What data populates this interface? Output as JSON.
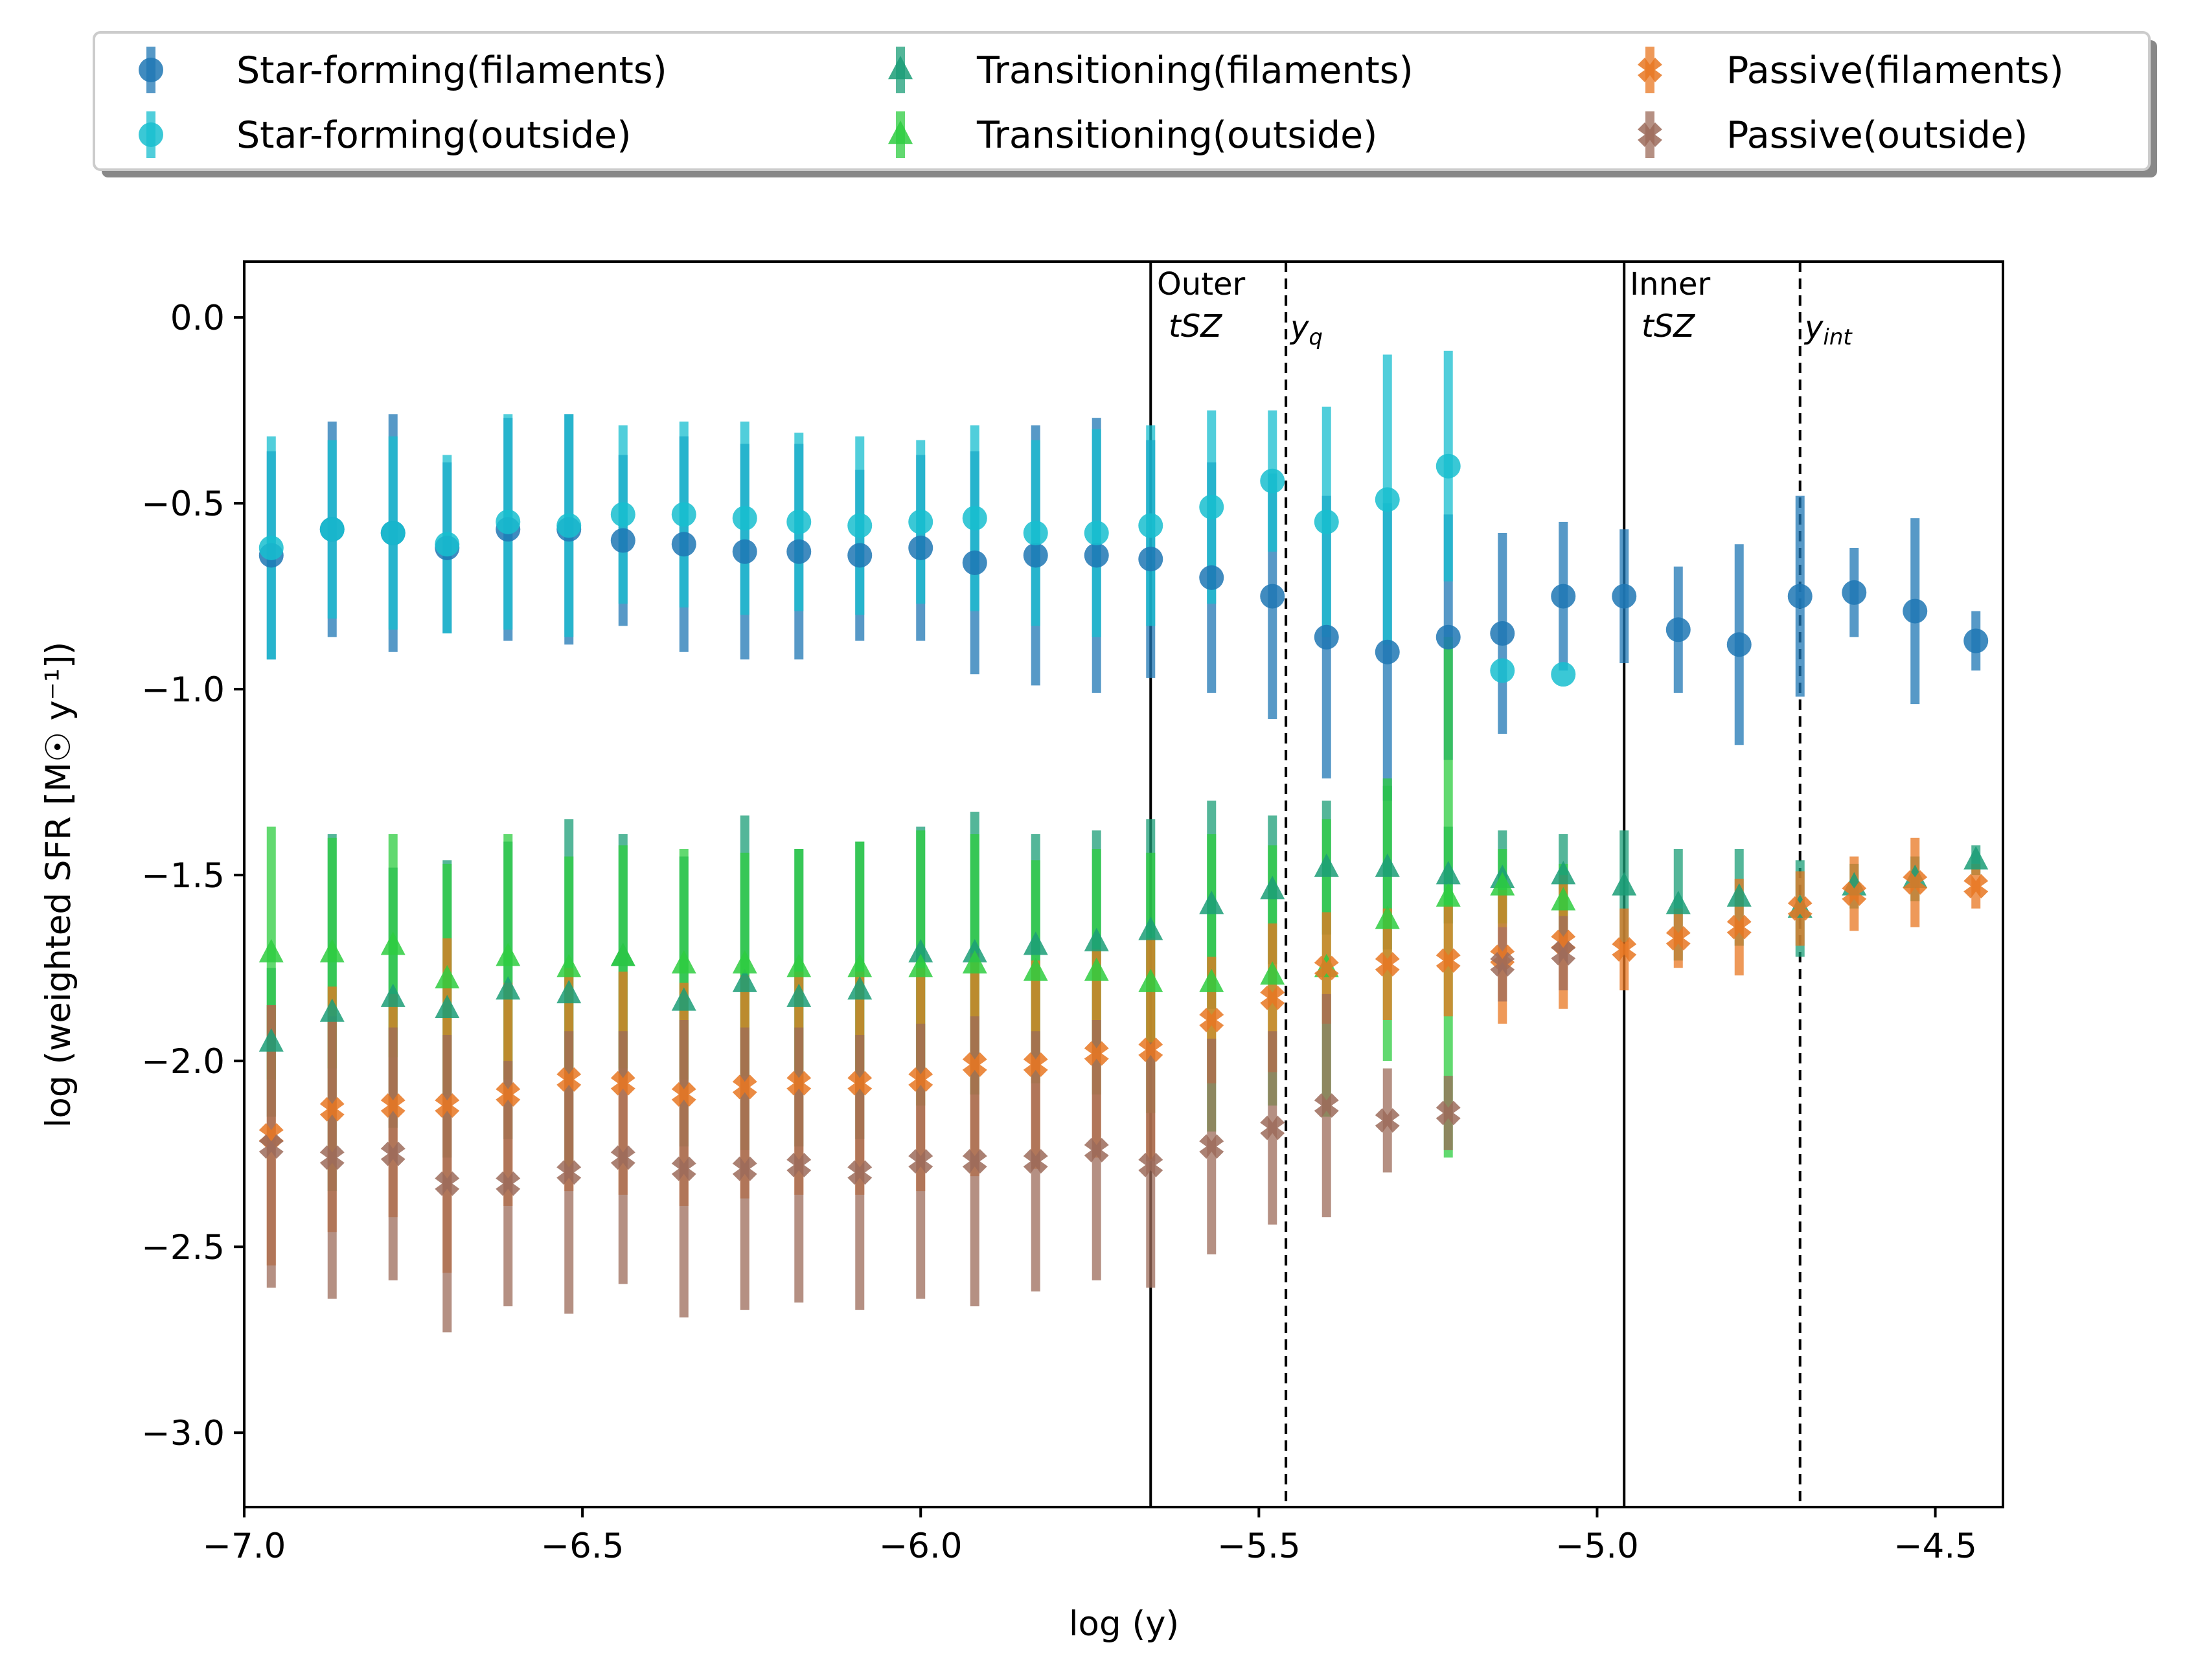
{
  "chart_data": {
    "type": "scatter",
    "title": "",
    "xlabel": "log (y)",
    "ylabel": "log (weighted SFR [M☉ y⁻¹])",
    "xlim": [
      -7.0,
      -4.4
    ],
    "ylim": [
      -3.2,
      0.15
    ],
    "xticks": [
      -7.0,
      -6.5,
      -6.0,
      -5.5,
      -5.0,
      -4.5
    ],
    "xtick_labels": [
      "−7.0",
      "−6.5",
      "−6.0",
      "−5.5",
      "−5.0",
      "−4.5"
    ],
    "yticks": [
      0.0,
      -0.5,
      -1.0,
      -1.5,
      -2.0,
      -2.5,
      -3.0
    ],
    "ytick_labels": [
      "0.0",
      "−0.5",
      "−1.0",
      "−1.5",
      "−2.0",
      "−2.5",
      "−3.0"
    ],
    "grid": false,
    "legend_position": "top (outside, 3 columns)",
    "vlines": [
      {
        "x": -5.66,
        "style": "solid",
        "label_line1": "Outer",
        "label_line2": "tSZ"
      },
      {
        "x": -5.46,
        "style": "dashed",
        "label": "y",
        "label_sub": "q"
      },
      {
        "x": -4.96,
        "style": "solid",
        "label_line1": "Inner",
        "label_line2": "tSZ"
      },
      {
        "x": -4.7,
        "style": "dashed",
        "label": "y",
        "label_sub": "int"
      }
    ],
    "series": [
      {
        "name": "Star-forming(filaments)",
        "marker": "circle",
        "color": "#1f77b4",
        "x": [
          -6.96,
          -6.87,
          -6.78,
          -6.7,
          -6.61,
          -6.52,
          -6.44,
          -6.35,
          -6.26,
          -6.18,
          -6.09,
          -6.0,
          -5.92,
          -5.83,
          -5.74,
          -5.66,
          -5.57,
          -5.48,
          -5.4,
          -5.31,
          -5.22,
          -5.14,
          -5.05,
          -4.96,
          -4.88,
          -4.79,
          -4.7,
          -4.62,
          -4.53,
          -4.44
        ],
        "y": [
          -0.64,
          -0.57,
          -0.58,
          -0.62,
          -0.57,
          -0.57,
          -0.6,
          -0.61,
          -0.63,
          -0.63,
          -0.64,
          -0.62,
          -0.66,
          -0.64,
          -0.64,
          -0.65,
          -0.7,
          -0.75,
          -0.86,
          -0.9,
          -0.86,
          -0.85,
          -0.75,
          -0.75,
          -0.84,
          -0.88,
          -0.75,
          -0.74,
          -0.79,
          -0.87
        ],
        "yerr": [
          0.28,
          0.29,
          0.32,
          0.23,
          0.3,
          0.31,
          0.23,
          0.29,
          0.29,
          0.29,
          0.23,
          0.25,
          0.3,
          0.35,
          0.37,
          0.32,
          0.31,
          0.33,
          0.38,
          0.4,
          0.33,
          0.27,
          0.2,
          0.18,
          0.17,
          0.27,
          0.27,
          0.12,
          0.25,
          0.08
        ]
      },
      {
        "name": "Star-forming(outside)",
        "marker": "circle",
        "color": "#17becf",
        "x": [
          -6.96,
          -6.87,
          -6.78,
          -6.7,
          -6.61,
          -6.52,
          -6.44,
          -6.35,
          -6.26,
          -6.18,
          -6.09,
          -6.0,
          -5.92,
          -5.83,
          -5.74,
          -5.66,
          -5.57,
          -5.48,
          -5.4,
          -5.31,
          -5.22,
          -5.14,
          -5.05
        ],
        "y": [
          -0.62,
          -0.57,
          -0.58,
          -0.61,
          -0.55,
          -0.56,
          -0.53,
          -0.53,
          -0.54,
          -0.55,
          -0.56,
          -0.55,
          -0.54,
          -0.58,
          -0.58,
          -0.56,
          -0.51,
          -0.44,
          -0.55,
          -0.49,
          -0.4,
          -0.95,
          -0.96
        ],
        "yerr": [
          0.3,
          0.24,
          0.26,
          0.24,
          0.29,
          0.3,
          0.24,
          0.25,
          0.26,
          0.24,
          0.24,
          0.22,
          0.25,
          0.25,
          0.28,
          0.27,
          0.26,
          0.19,
          0.31,
          0.39,
          0.31,
          0.0,
          0.0
        ]
      },
      {
        "name": "Transitioning(filaments)",
        "marker": "triangle",
        "color": "#1b9e77",
        "x": [
          -6.96,
          -6.87,
          -6.78,
          -6.7,
          -6.61,
          -6.52,
          -6.44,
          -6.35,
          -6.26,
          -6.18,
          -6.09,
          -6.0,
          -5.92,
          -5.83,
          -5.74,
          -5.66,
          -5.57,
          -5.48,
          -5.4,
          -5.31,
          -5.22,
          -5.14,
          -5.05,
          -4.96,
          -4.88,
          -4.79,
          -4.7,
          -4.62,
          -4.53,
          -4.44
        ],
        "y": [
          -1.95,
          -1.87,
          -1.83,
          -1.86,
          -1.81,
          -1.82,
          -1.72,
          -1.84,
          -1.79,
          -1.83,
          -1.81,
          -1.71,
          -1.71,
          -1.69,
          -1.68,
          -1.65,
          -1.58,
          -1.54,
          -1.48,
          -1.48,
          -1.5,
          -1.51,
          -1.5,
          -1.53,
          -1.58,
          -1.56,
          -1.59,
          -1.53,
          -1.51,
          -1.46
        ],
        "yerr": [
          0.2,
          0.48,
          0.35,
          0.4,
          0.4,
          0.47,
          0.33,
          0.39,
          0.45,
          0.4,
          0.4,
          0.34,
          0.38,
          0.3,
          0.3,
          0.3,
          0.28,
          0.2,
          0.18,
          0.22,
          0.13,
          0.13,
          0.11,
          0.15,
          0.15,
          0.13,
          0.13,
          0.06,
          0.06,
          0.04
        ]
      },
      {
        "name": "Transitioning(outside)",
        "marker": "triangle",
        "color": "#2ecc40",
        "x": [
          -6.96,
          -6.87,
          -6.78,
          -6.7,
          -6.61,
          -6.52,
          -6.44,
          -6.35,
          -6.26,
          -6.18,
          -6.09,
          -6.0,
          -5.92,
          -5.83,
          -5.74,
          -5.66,
          -5.57,
          -5.48,
          -5.4,
          -5.31,
          -5.22,
          -5.14,
          -5.05
        ],
        "y": [
          -1.71,
          -1.71,
          -1.69,
          -1.78,
          -1.72,
          -1.75,
          -1.72,
          -1.74,
          -1.74,
          -1.75,
          -1.75,
          -1.75,
          -1.74,
          -1.76,
          -1.76,
          -1.79,
          -1.79,
          -1.77,
          -1.75,
          -1.62,
          -1.56,
          -1.53,
          -1.57
        ],
        "yerr": [
          0.34,
          0.31,
          0.3,
          0.31,
          0.33,
          0.3,
          0.3,
          0.31,
          0.3,
          0.32,
          0.34,
          0.37,
          0.35,
          0.3,
          0.33,
          0.35,
          0.4,
          0.35,
          0.4,
          0.38,
          0.7,
          0.1,
          0.1
        ]
      },
      {
        "name": "Passive(filaments)",
        "marker": "x-filled",
        "color": "#e87722",
        "x": [
          -6.96,
          -6.87,
          -6.78,
          -6.7,
          -6.61,
          -6.52,
          -6.44,
          -6.35,
          -6.26,
          -6.18,
          -6.09,
          -6.0,
          -5.92,
          -5.83,
          -5.74,
          -5.66,
          -5.57,
          -5.48,
          -5.4,
          -5.31,
          -5.22,
          -5.14,
          -5.05,
          -4.96,
          -4.88,
          -4.79,
          -4.7,
          -4.62,
          -4.53,
          -4.44
        ],
        "y": [
          -2.2,
          -2.13,
          -2.12,
          -2.12,
          -2.09,
          -2.05,
          -2.06,
          -2.09,
          -2.07,
          -2.06,
          -2.06,
          -2.05,
          -2.01,
          -2.01,
          -1.98,
          -1.97,
          -1.89,
          -1.83,
          -1.75,
          -1.74,
          -1.73,
          -1.72,
          -1.68,
          -1.7,
          -1.67,
          -1.64,
          -1.59,
          -1.55,
          -1.52,
          -1.53
        ],
        "yerr": [
          0.35,
          0.33,
          0.3,
          0.45,
          0.3,
          0.3,
          0.3,
          0.3,
          0.3,
          0.3,
          0.3,
          0.3,
          0.3,
          0.28,
          0.28,
          0.3,
          0.17,
          0.2,
          0.15,
          0.15,
          0.15,
          0.18,
          0.18,
          0.11,
          0.08,
          0.13,
          0.1,
          0.1,
          0.12,
          0.06
        ]
      },
      {
        "name": "Passive(outside)",
        "marker": "x-filled",
        "color": "#9c6b5a",
        "x": [
          -6.96,
          -6.87,
          -6.78,
          -6.7,
          -6.61,
          -6.52,
          -6.44,
          -6.35,
          -6.26,
          -6.18,
          -6.09,
          -6.0,
          -5.92,
          -5.83,
          -5.74,
          -5.66,
          -5.57,
          -5.48,
          -5.4,
          -5.31,
          -5.22,
          -5.14,
          -5.05
        ],
        "y": [
          -2.23,
          -2.26,
          -2.25,
          -2.33,
          -2.33,
          -2.3,
          -2.26,
          -2.29,
          -2.29,
          -2.28,
          -2.3,
          -2.27,
          -2.27,
          -2.27,
          -2.24,
          -2.28,
          -2.23,
          -2.18,
          -2.12,
          -2.16,
          -2.14,
          -1.74,
          -1.71
        ],
        "yerr": [
          0.38,
          0.38,
          0.34,
          0.4,
          0.33,
          0.38,
          0.34,
          0.4,
          0.38,
          0.37,
          0.37,
          0.37,
          0.39,
          0.35,
          0.35,
          0.33,
          0.29,
          0.26,
          0.3,
          0.14,
          0.1,
          0.1,
          0.1
        ]
      }
    ]
  }
}
